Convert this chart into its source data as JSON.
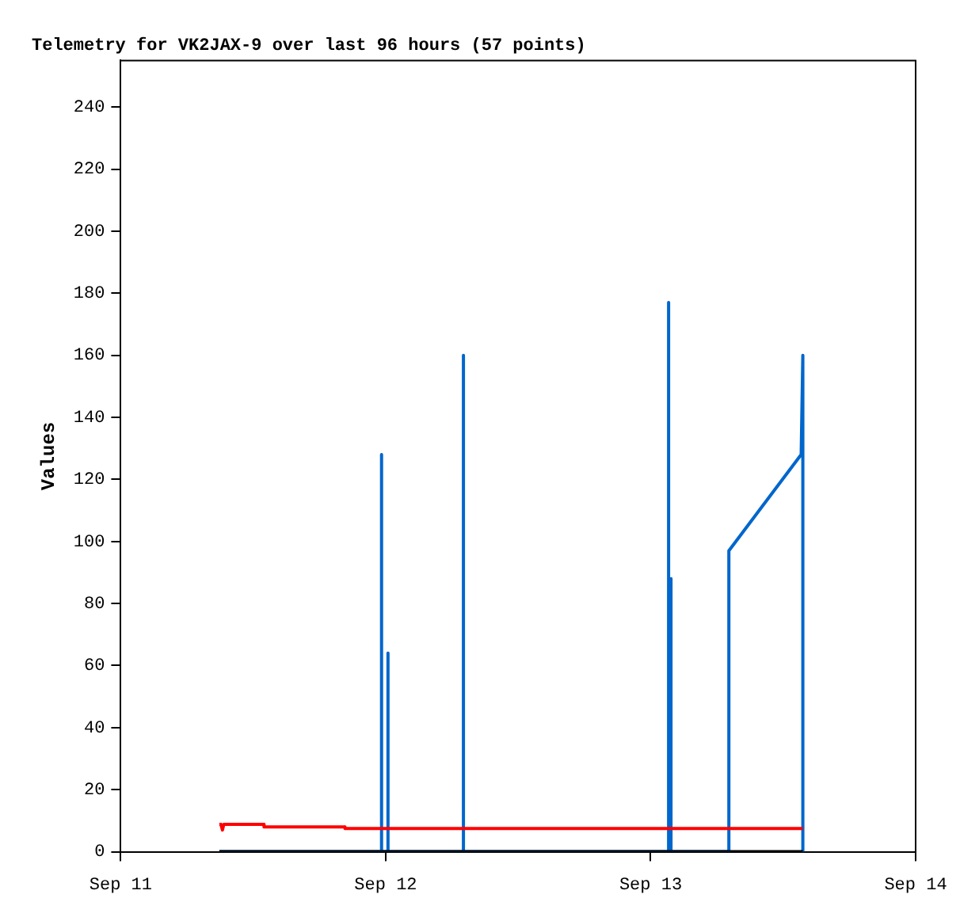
{
  "chart_data": {
    "type": "line",
    "title": "Telemetry for VK2JAX-9 over last 96 hours (57 points)",
    "ylabel": "Values",
    "xlim": [
      "--09-11",
      "--09-14"
    ],
    "xticks": [
      {
        "value": "--09-11",
        "label": "Sep 11"
      },
      {
        "value": "--09-12",
        "label": "Sep 12"
      },
      {
        "value": "--09-13",
        "label": "Sep 13"
      },
      {
        "value": "--09-14",
        "label": "Sep 14"
      }
    ],
    "ylim": [
      0,
      255
    ],
    "yticks": [
      0,
      20,
      40,
      60,
      80,
      100,
      120,
      140,
      160,
      180,
      200,
      220,
      240
    ],
    "grid": false,
    "legend": false,
    "marker": "none",
    "line_style": "solid",
    "series": [
      {
        "color": "#ff0000",
        "x": [
          "--09-11T08:56",
          "--09-11T09:05",
          "--09-11T09:13",
          "--09-11T09:20",
          "--09-11T12:58",
          "--09-11T12:59",
          "--09-11T20:18",
          "--09-11T20:19",
          "--09-13T13:47"
        ],
        "values": [
          8.8,
          8.8,
          7,
          8.8,
          8.8,
          8,
          8,
          7.5,
          7.5
        ]
      },
      {
        "color": "#000000",
        "x": [
          "--09-11T08:56",
          "--09-13T13:47"
        ],
        "values": [
          0,
          0
        ]
      },
      {
        "color": "#0066cc",
        "x": [
          "--09-11T08:56",
          "--09-11T23:37",
          "--09-11T23:37",
          "--09-11T23:38",
          "--09-12T00:12",
          "--09-12T00:12",
          "--09-12T00:13",
          "--09-12T07:02",
          "--09-12T07:02",
          "--09-12T07:03",
          "--09-13T01:37",
          "--09-13T01:37",
          "--09-13T01:38",
          "--09-13T01:50",
          "--09-13T01:50",
          "--09-13T01:51",
          "--09-13T07:05",
          "--09-13T07:05",
          "--09-13T13:38",
          "--09-13T13:47",
          "--09-13T13:47"
        ],
        "values": [
          0,
          0,
          128,
          0,
          0,
          64,
          0,
          0,
          160,
          0,
          0,
          177,
          0,
          0,
          88,
          0,
          0,
          97,
          128,
          160,
          0
        ]
      }
    ]
  }
}
